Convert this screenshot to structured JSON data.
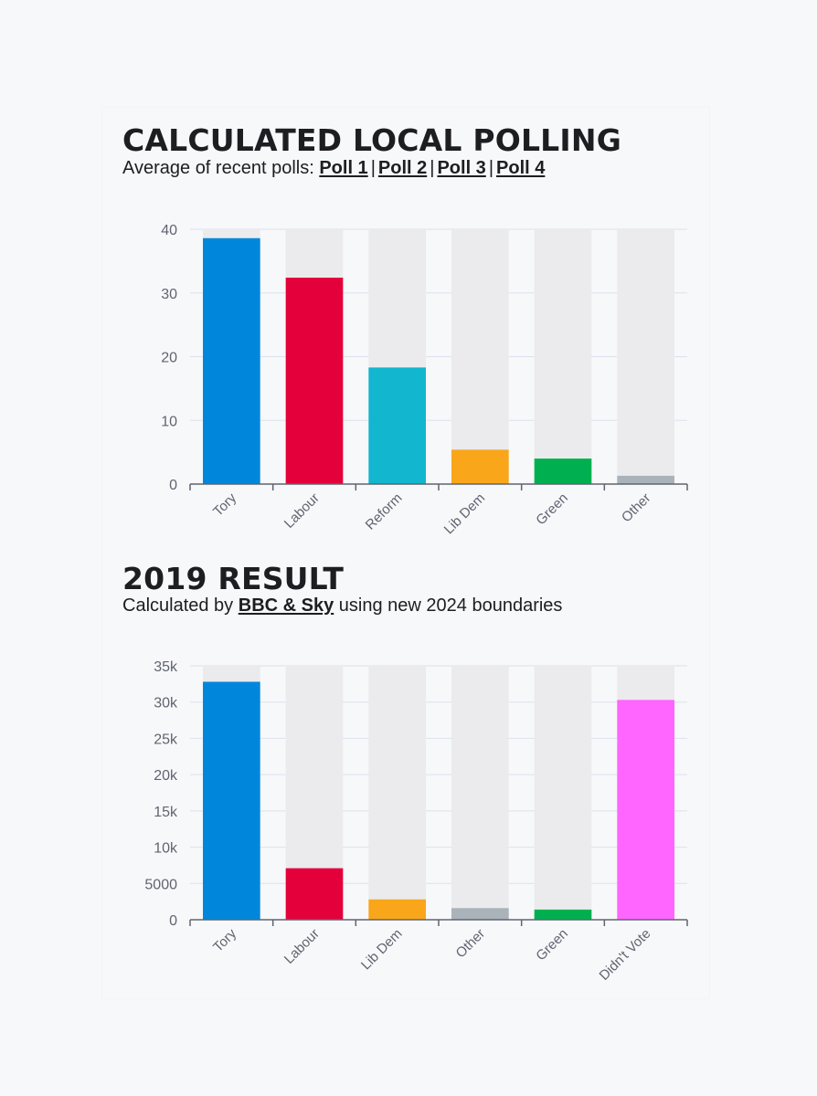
{
  "polling": {
    "title": "CALCULATED LOCAL POLLING",
    "subtitle_prefix": "Average of recent polls:",
    "links": [
      "Poll 1",
      "Poll 2",
      "Poll 3",
      "Poll 4"
    ],
    "separator": "|"
  },
  "result": {
    "title": "2019 RESULT",
    "subtitle_prefix": "Calculated by",
    "link": "BBC & Sky",
    "subtitle_suffix": "using new 2024 boundaries"
  },
  "chart_data": [
    {
      "type": "bar",
      "title": "CALCULATED LOCAL POLLING",
      "categories": [
        "Tory",
        "Labour",
        "Reform",
        "Lib Dem",
        "Green",
        "Other"
      ],
      "values": [
        38.6,
        32.4,
        18.3,
        5.4,
        4.0,
        1.3
      ],
      "colors": [
        "#0087dc",
        "#e4003b",
        "#12b6cf",
        "#faa61a",
        "#00b050",
        "#aab2ba"
      ],
      "ylim": [
        0,
        40
      ],
      "yticks": [
        0,
        10,
        20,
        30,
        40
      ],
      "ytick_labels": [
        "0",
        "10",
        "20",
        "30",
        "40"
      ],
      "xlabel": "",
      "ylabel": "",
      "grid": true,
      "background_bars": true
    },
    {
      "type": "bar",
      "title": "2019 RESULT",
      "categories": [
        "Tory",
        "Labour",
        "Lib Dem",
        "Other",
        "Green",
        "Didn't Vote"
      ],
      "values": [
        32800,
        7100,
        2800,
        1600,
        1400,
        30300
      ],
      "colors": [
        "#0087dc",
        "#e4003b",
        "#faa61a",
        "#aab2ba",
        "#00b050",
        "#ff66ff"
      ],
      "ylim": [
        0,
        35000
      ],
      "yticks": [
        0,
        5000,
        10000,
        15000,
        20000,
        25000,
        30000,
        35000
      ],
      "ytick_labels": [
        "0",
        "5000",
        "10k",
        "15k",
        "20k",
        "25k",
        "30k",
        "35k"
      ],
      "xlabel": "",
      "ylabel": "",
      "grid": true,
      "background_bars": true
    }
  ]
}
